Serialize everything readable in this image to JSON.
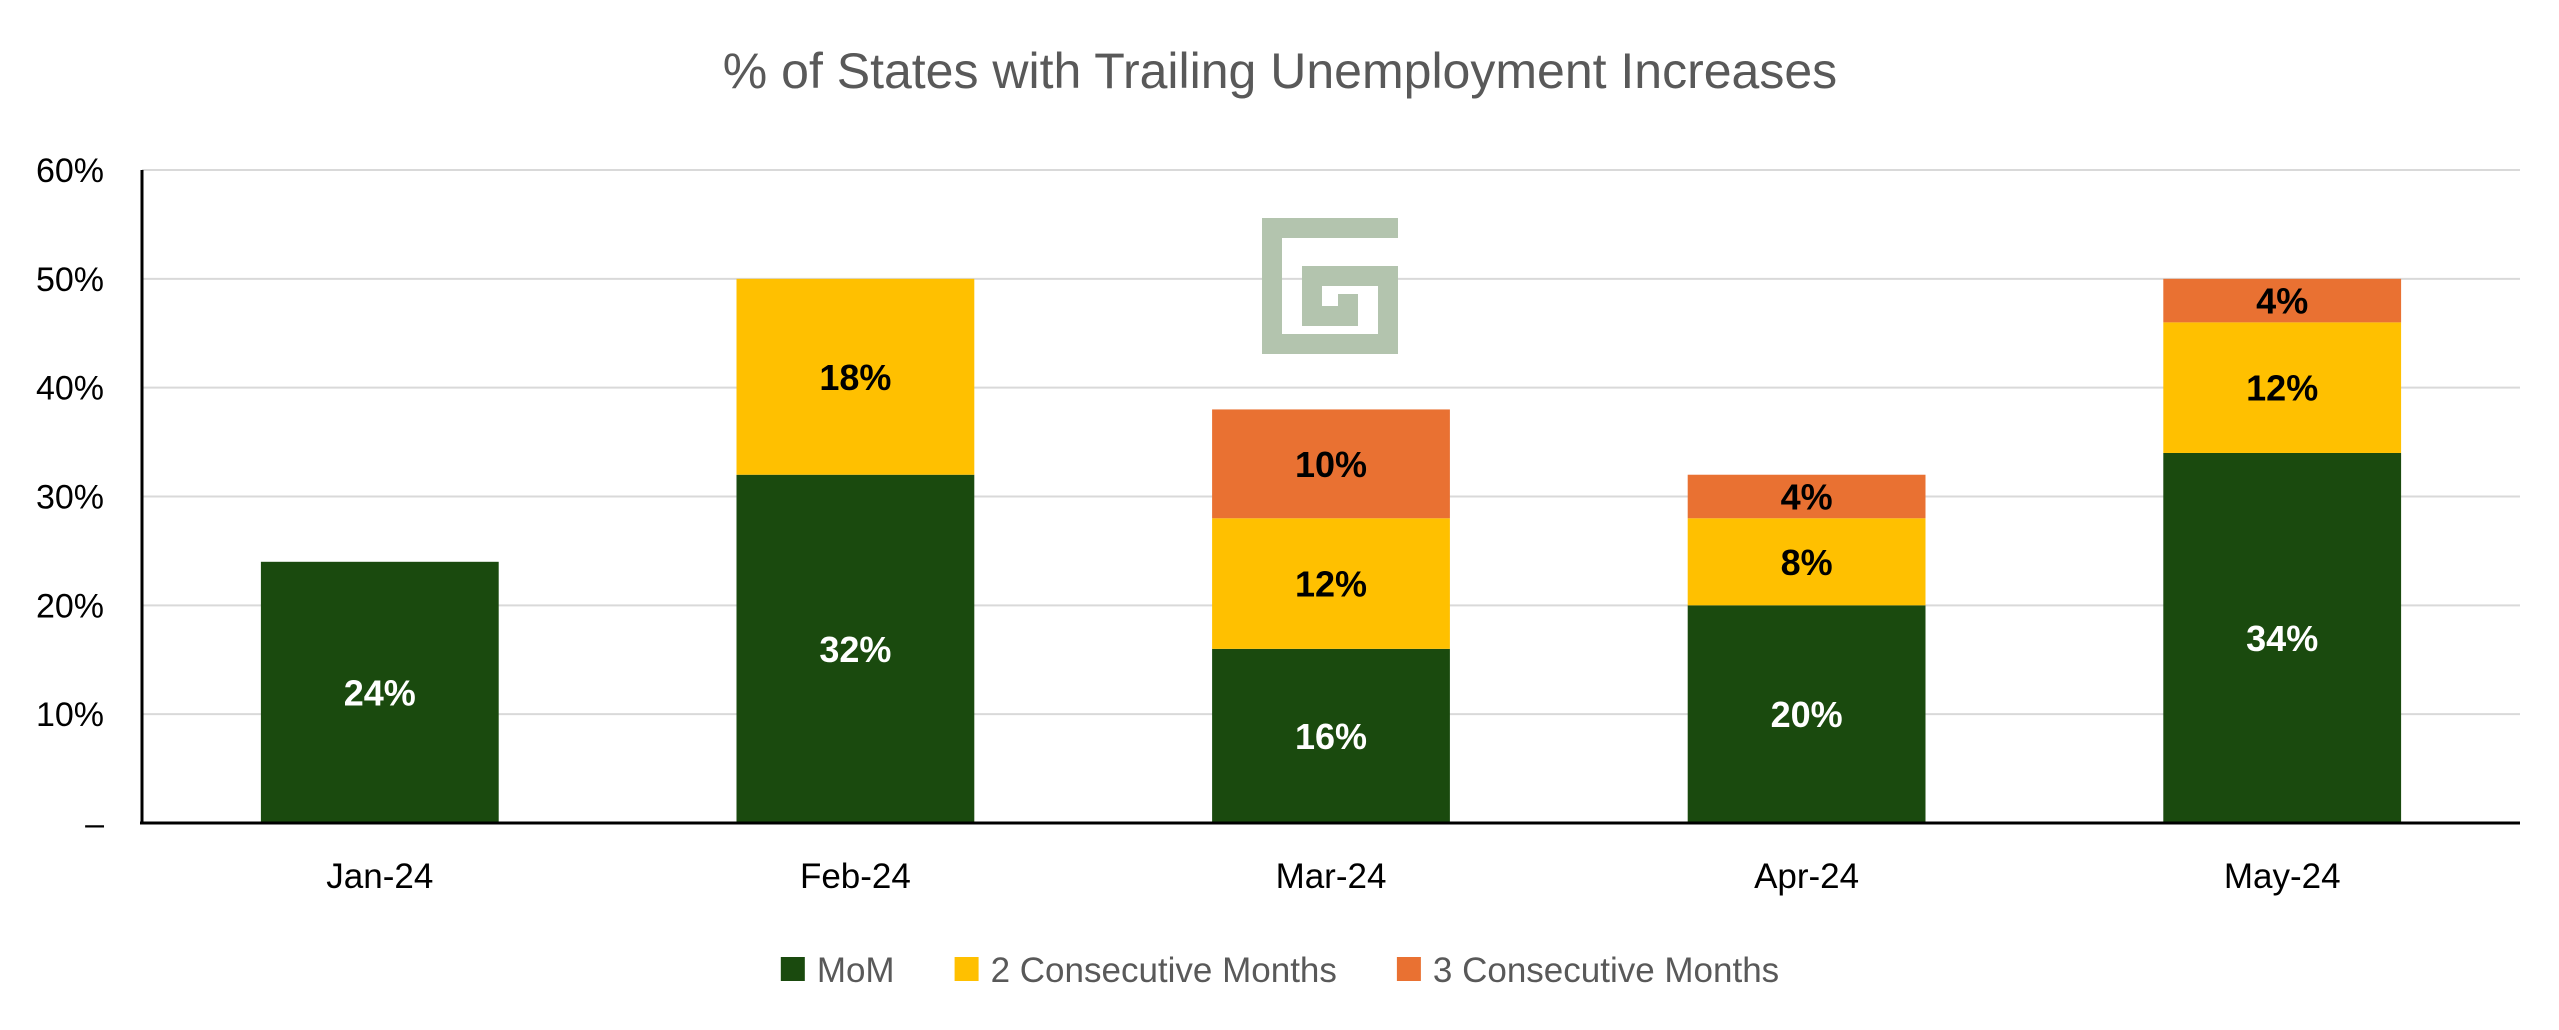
{
  "chart_data": {
    "type": "bar",
    "stacked": true,
    "title": "% of States with Trailing Unemployment Increases",
    "categories": [
      "Jan-24",
      "Feb-24",
      "Mar-24",
      "Apr-24",
      "May-24"
    ],
    "series": [
      {
        "name": "MoM",
        "color": "#1a4a0e",
        "label_color": "#ffffff",
        "values": [
          24,
          32,
          16,
          20,
          34
        ]
      },
      {
        "name": "2 Consecutive Months",
        "color": "#ffc000",
        "label_color": "#000000",
        "values": [
          0,
          18,
          12,
          8,
          12
        ]
      },
      {
        "name": "3 Consecutive Months",
        "color": "#e97132",
        "label_color": "#000000",
        "values": [
          0,
          0,
          10,
          4,
          4
        ]
      }
    ],
    "ylim": [
      0,
      60
    ],
    "yticks": [
      0,
      10,
      20,
      30,
      40,
      50,
      60
    ],
    "ytick_labels": [
      "–",
      "10%",
      "20%",
      "30%",
      "40%",
      "50%",
      "60%"
    ],
    "value_suffix": "%",
    "grid": true,
    "legend_position": "bottom"
  },
  "watermark": {
    "type": "logo",
    "color": "#b3c4ae",
    "icon": "maze-logo-icon"
  }
}
